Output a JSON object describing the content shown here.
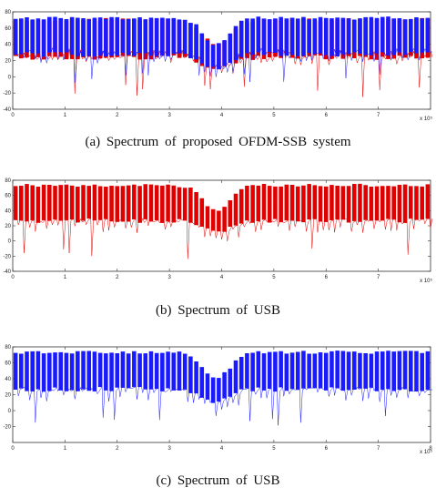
{
  "figure": {
    "panels": [
      {
        "caption": "(a) Spectrum of proposed OFDM-SSB system",
        "x_exponent": "x 10⁵"
      },
      {
        "caption": "(b) Spectrum of USB",
        "x_exponent": "x 10⁵"
      },
      {
        "caption": "(c) Spectrum of USB",
        "x_exponent": "x 10⁵"
      }
    ]
  },
  "chart_data": [
    {
      "type": "line",
      "title": "",
      "xlabel": "",
      "ylabel": "",
      "xlim": [
        0,
        8
      ],
      "ylim": [
        -40,
        80
      ],
      "xticks": [
        "0",
        "1",
        "2",
        "3",
        "4",
        "5",
        "6",
        "7"
      ],
      "yticks": [
        "-40",
        "-20",
        "0",
        "20",
        "40",
        "60",
        "80"
      ],
      "notch_center": 3.9,
      "series": [
        {
          "color": "#e00000",
          "peak_level": 70,
          "floor_level": 32,
          "min_dips": -25,
          "dip_center": 44
        },
        {
          "color": "#1a1aff",
          "peak_level": 72,
          "floor_level": 36,
          "min_dips": -10,
          "dip_center": 46
        }
      ]
    },
    {
      "type": "line",
      "title": "",
      "xlabel": "",
      "ylabel": "",
      "xlim": [
        0,
        8
      ],
      "ylim": [
        -40,
        80
      ],
      "xticks": [
        "0",
        "1",
        "2",
        "3",
        "4",
        "5",
        "6",
        "7"
      ],
      "yticks": [
        "-40",
        "-20",
        "0",
        "20",
        "40",
        "60",
        "80"
      ],
      "notch_center": 3.9,
      "series": [
        {
          "color": "#e00000",
          "peak_level": 73,
          "floor_level": 35,
          "min_dips": -25,
          "dip_center": 40
        }
      ]
    },
    {
      "type": "line",
      "title": "",
      "xlabel": "",
      "ylabel": "",
      "xlim": [
        0,
        8
      ],
      "ylim": [
        -40,
        80
      ],
      "xticks": [
        "0",
        "1",
        "2",
        "3",
        "4",
        "5",
        "6",
        "7",
        "8"
      ],
      "yticks": [
        "-20",
        "0",
        "20",
        "40",
        "60",
        "80"
      ],
      "notch_center": 3.9,
      "series": [
        {
          "color": "#1a1aff",
          "peak_level": 73,
          "floor_level": 35,
          "min_dips": -20,
          "dip_center": 40
        }
      ]
    }
  ]
}
